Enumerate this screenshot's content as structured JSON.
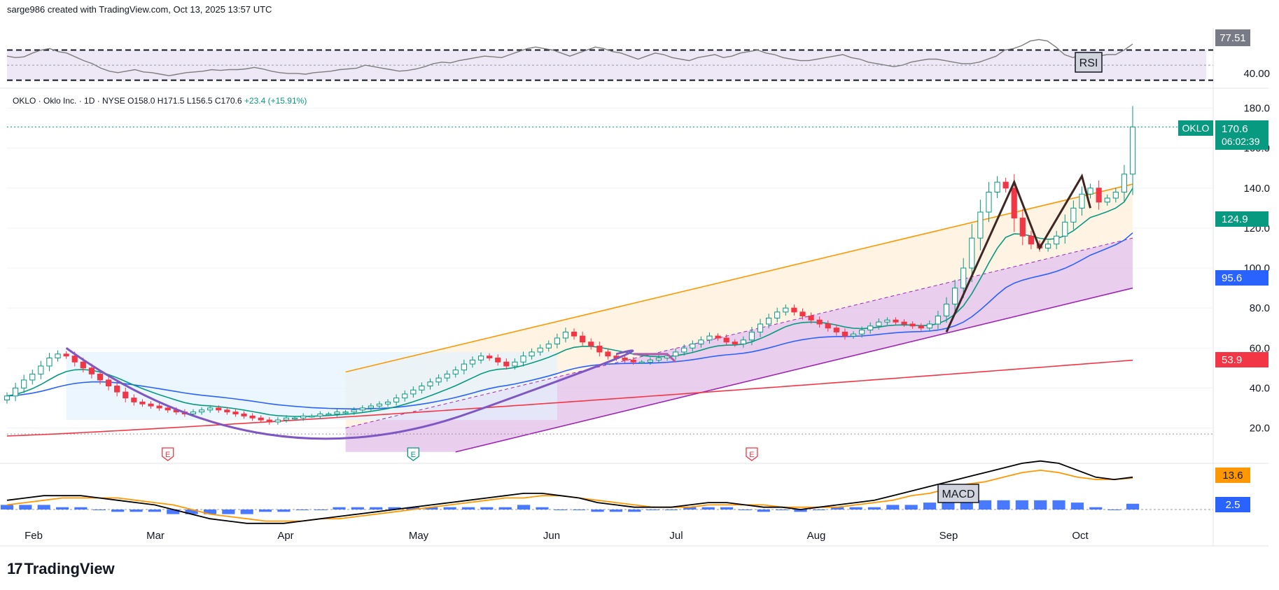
{
  "header": {
    "attribution": "sarge986 created with TradingView.com, Oct 13, 2025 13:57 UTC"
  },
  "symbol_line": {
    "name": "OKLO · Oklo Inc. · 1D · NYSE",
    "open": "O158.0",
    "high": "H171.5",
    "low": "L156.5",
    "close": "C170.6",
    "change": "+23.4 (+15.91%)"
  },
  "colors": {
    "up": "#089981",
    "down": "#f23645",
    "ema_short": "#089981",
    "ema_mid": "#2962ff",
    "ema_long": "#f23645",
    "rsi_line": "#7e7e7e",
    "rsi_band": "#ede7f6",
    "channel_upper": "#ff9800",
    "channel_lower": "#9c27b0",
    "macd_line": "#000000",
    "signal_line": "#ff9800",
    "histogram": "#2962ff"
  },
  "footer": {
    "brand": "TradingView"
  },
  "chart_data": [
    {
      "type": "line",
      "title": "RSI",
      "overbought": 70,
      "oversold": 30,
      "last_value_label": "77.51",
      "axis_label": "40.00",
      "values": [
        62,
        60,
        61,
        66,
        70,
        72,
        68,
        66,
        61,
        56,
        52,
        46,
        42,
        40,
        42,
        44,
        41,
        40,
        38,
        36,
        38,
        40,
        41,
        42,
        44,
        43,
        44,
        44,
        45,
        47,
        45,
        42,
        40,
        39,
        39,
        38,
        40,
        41,
        42,
        44,
        45,
        46,
        50,
        48,
        46,
        44,
        42,
        43,
        45,
        48,
        52,
        54,
        53,
        56,
        58,
        60,
        62,
        61,
        60,
        64,
        68,
        72,
        74,
        72,
        70,
        66,
        62,
        66,
        70,
        74,
        72,
        68,
        66,
        62,
        58,
        62,
        66,
        64,
        60,
        58,
        56,
        60,
        62,
        64,
        60,
        62,
        66,
        68,
        70,
        66,
        64,
        60,
        58,
        56,
        56,
        58,
        60,
        62,
        64,
        60,
        58,
        54,
        52,
        50,
        48,
        50,
        54,
        56,
        58,
        58,
        56,
        54,
        52,
        52,
        54,
        58,
        62,
        70,
        72,
        76,
        82,
        84,
        82,
        74,
        64,
        60,
        64,
        60,
        62,
        64,
        64,
        70,
        78
      ]
    },
    {
      "type": "candlestick",
      "symbol": "OKLO",
      "y_ticks": [
        "20.0",
        "40.0",
        "60.0",
        "80.0",
        "100.0",
        "120.0",
        "140.0",
        "160.0",
        "180.0"
      ],
      "ylim": [
        8,
        186
      ],
      "x_ticks": [
        "Feb",
        "Mar",
        "Apr",
        "May",
        "Jun",
        "Jul",
        "Aug",
        "Sep",
        "Oct"
      ],
      "last_price_label": "170.6",
      "countdown_label": "06:02:39",
      "ema_labels": {
        "short": "124.9",
        "mid": "95.6",
        "long": "53.9"
      },
      "earnings_marker": "E",
      "earnings_positions": [
        19,
        48,
        88
      ],
      "close": [
        36,
        40,
        44,
        47,
        51,
        55,
        57,
        56,
        53,
        50,
        47,
        44,
        41,
        38,
        35,
        33,
        32,
        31,
        30,
        29,
        28,
        27,
        28,
        29,
        30,
        29,
        28,
        27,
        26,
        25,
        24,
        23,
        24,
        25,
        25,
        26,
        26,
        27,
        27,
        28,
        28,
        29,
        30,
        31,
        32,
        33,
        35,
        37,
        39,
        41,
        43,
        45,
        47,
        49,
        52,
        54,
        56,
        55,
        53,
        51,
        53,
        56,
        58,
        60,
        62,
        65,
        68,
        66,
        63,
        61,
        58,
        56,
        55,
        54,
        53,
        53,
        54,
        55,
        56,
        58,
        60,
        62,
        64,
        66,
        65,
        63,
        62,
        64,
        68,
        72,
        75,
        78,
        80,
        78,
        76,
        74,
        72,
        70,
        68,
        66,
        67,
        69,
        71,
        73,
        74,
        73,
        72,
        71,
        70,
        72,
        76,
        82,
        90,
        100,
        115,
        128,
        138,
        143,
        140,
        125,
        116,
        112,
        110,
        112,
        116,
        123,
        130,
        137,
        140,
        133,
        135,
        138,
        147,
        170.6
      ]
    },
    {
      "type": "bar",
      "title": "MACD",
      "last_value_label": "13.6",
      "hist_label": "2.5",
      "macd": [
        4,
        5,
        6,
        6,
        6,
        5,
        4,
        3,
        2,
        0,
        -2,
        -4,
        -5,
        -6,
        -6,
        -6,
        -5,
        -4,
        -3,
        -2,
        -1,
        0,
        1,
        2,
        3,
        4,
        5,
        6,
        7,
        7,
        6,
        5,
        3,
        2,
        1,
        1,
        1,
        2,
        3,
        3,
        2,
        1,
        1,
        0,
        1,
        2,
        3,
        4,
        6,
        8,
        10,
        12,
        14,
        16,
        18,
        20,
        21,
        20,
        17,
        14,
        13,
        14
      ],
      "signal": [
        2,
        3,
        4,
        5,
        5,
        5,
        5,
        4,
        3,
        2,
        0,
        -2,
        -3,
        -4,
        -5,
        -5,
        -5,
        -4,
        -4,
        -3,
        -2,
        -1,
        0,
        1,
        2,
        3,
        4,
        5,
        5,
        6,
        6,
        5,
        4,
        3,
        2,
        1,
        1,
        1,
        2,
        2,
        2,
        2,
        1,
        1,
        1,
        1,
        2,
        3,
        4,
        6,
        7,
        9,
        11,
        12,
        14,
        16,
        17,
        16,
        14,
        13,
        13,
        13.6
      ],
      "histogram": [
        2,
        2,
        2,
        1,
        1,
        0,
        -1,
        -1,
        -1,
        -2,
        -2,
        -2,
        -2,
        -2,
        -1,
        -1,
        0,
        0,
        1,
        1,
        1,
        1,
        1,
        1,
        1,
        1,
        1,
        1,
        2,
        1,
        0,
        0,
        -1,
        -1,
        -1,
        0,
        0,
        1,
        1,
        1,
        0,
        -1,
        0,
        -1,
        0,
        1,
        1,
        1,
        2,
        2,
        3,
        3,
        3,
        4,
        4,
        4,
        4,
        4,
        3,
        1,
        0,
        2.5
      ]
    }
  ]
}
